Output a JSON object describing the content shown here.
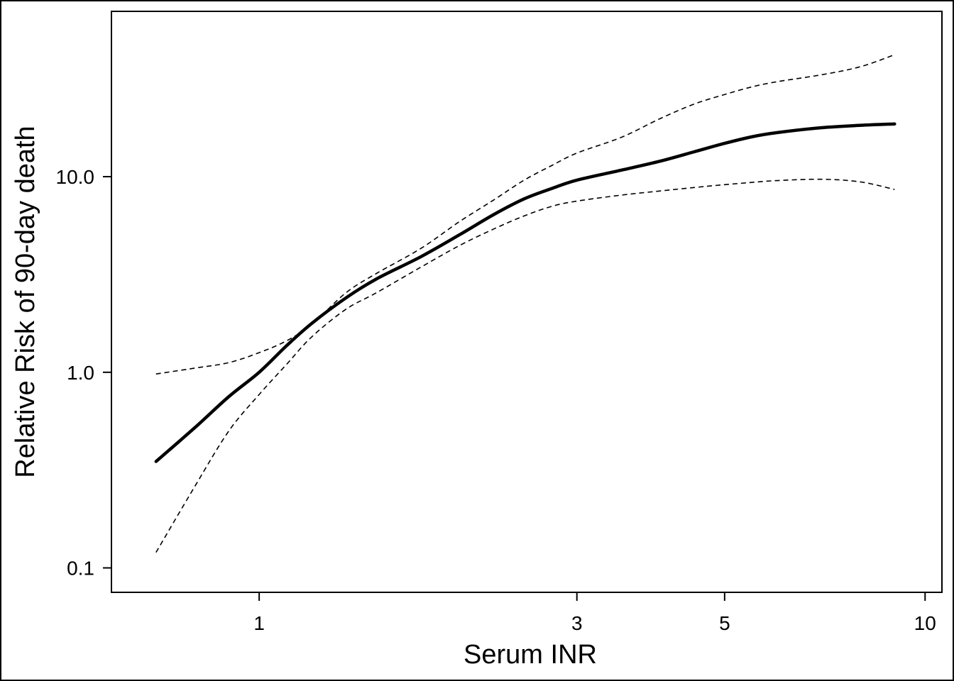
{
  "chart_data": {
    "type": "line",
    "xlabel": "Serum INR",
    "ylabel": "Relative Risk of 90-day death",
    "xscale": "log",
    "yscale": "log",
    "xlim": [
      0.6,
      10.6
    ],
    "ylim": [
      0.075,
      70
    ],
    "xticks": [
      1,
      3,
      5,
      10
    ],
    "xtick_labels": [
      "1",
      "3",
      "5",
      "10"
    ],
    "yticks": [
      0.1,
      1.0,
      10.0
    ],
    "ytick_labels": [
      "0.1",
      "1.0",
      "10.0"
    ],
    "grid": false,
    "series": [
      {
        "role": "estimate",
        "style": "solid",
        "x": [
          0.7,
          0.8,
          0.9,
          1.0,
          1.1,
          1.2,
          1.35,
          1.5,
          1.75,
          2.0,
          2.25,
          2.5,
          2.75,
          3.0,
          3.5,
          4.0,
          4.5,
          5.0,
          5.5,
          6.0,
          7.0,
          8.0,
          9.0
        ],
        "y": [
          0.35,
          0.52,
          0.75,
          1.0,
          1.37,
          1.78,
          2.4,
          3.0,
          3.9,
          5.05,
          6.4,
          7.7,
          8.7,
          9.6,
          10.8,
          12.0,
          13.4,
          14.8,
          16.0,
          16.8,
          17.8,
          18.3,
          18.6
        ]
      },
      {
        "role": "upper_ci",
        "style": "dashed",
        "x": [
          0.7,
          0.8,
          0.9,
          1.0,
          1.1,
          1.2,
          1.35,
          1.5,
          1.75,
          2.0,
          2.25,
          2.5,
          2.75,
          3.0,
          3.5,
          4.0,
          4.5,
          5.0,
          5.5,
          6.0,
          7.0,
          8.0,
          9.0
        ],
        "y": [
          0.98,
          1.05,
          1.12,
          1.26,
          1.45,
          1.76,
          2.55,
          3.2,
          4.3,
          5.9,
          7.6,
          9.6,
          11.4,
          13.2,
          15.9,
          19.8,
          23.5,
          26.3,
          28.8,
          30.6,
          33.2,
          36.5,
          42.0
        ]
      },
      {
        "role": "lower_ci",
        "style": "dashed",
        "x": [
          0.7,
          0.8,
          0.9,
          1.0,
          1.1,
          1.2,
          1.35,
          1.5,
          1.75,
          2.0,
          2.25,
          2.5,
          2.75,
          3.0,
          3.5,
          4.0,
          4.5,
          5.0,
          5.5,
          6.0,
          7.0,
          8.0,
          9.0
        ],
        "y": [
          0.12,
          0.26,
          0.5,
          0.77,
          1.1,
          1.52,
          2.1,
          2.55,
          3.45,
          4.45,
          5.4,
          6.3,
          7.05,
          7.5,
          8.05,
          8.45,
          8.8,
          9.1,
          9.35,
          9.55,
          9.7,
          9.4,
          8.6
        ]
      }
    ]
  }
}
